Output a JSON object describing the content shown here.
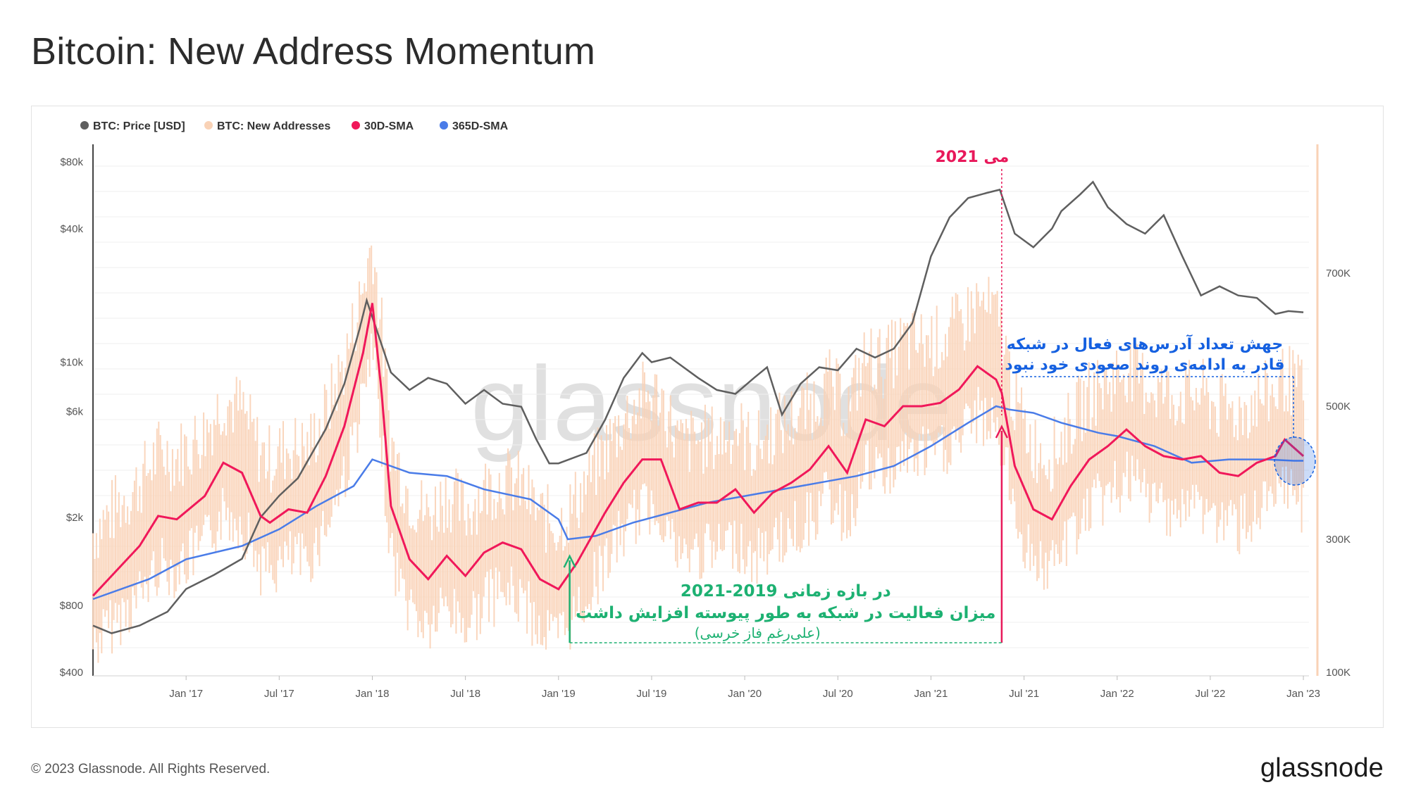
{
  "title": "Bitcoin: New Address Momentum",
  "footer": {
    "copyright": "© 2023 Glassnode. All Rights Reserved.",
    "brand": "glassnode"
  },
  "watermark": "glassnode",
  "colors": {
    "price": "#5f5f5f",
    "new_addresses": "#f9d2b6",
    "sma30": "#f0185a",
    "sma365": "#4a7ce8",
    "annotation_green": "#1db172",
    "annotation_red": "#e8185a",
    "annotation_blue": "#1560e0"
  },
  "annotations": {
    "may2021": "می 2021",
    "green_line1": "در بازه زمانی 2019-2021",
    "green_line2": "میزان فعالیت در شبکه به طور پیوسته افزایش داشت",
    "green_line3": "(علی‌رغم فاز خرسی)",
    "blue_line1": "جهش  تعداد آدرس‌های فعال در شبکه",
    "blue_line2": "قادر به ادامه‌ی روند صعودی خود نبود"
  },
  "chart_data": {
    "type": "line",
    "log_scale_left": true,
    "grid": true,
    "legend_placement": "top-left",
    "legend": [
      "BTC: Price [USD]",
      "BTC: New Addresses",
      "30D-SMA",
      "365D-SMA"
    ],
    "left_axis_ticks": [
      "$80k",
      "$40k",
      "$10k",
      "$6k",
      "$2k",
      "$800",
      "$400"
    ],
    "left_axis_values": [
      80000,
      40000,
      10000,
      6000,
      2000,
      800,
      400
    ],
    "right_axis_ticks": [
      "700K",
      "500K",
      "300K",
      "100K"
    ],
    "right_axis_values": [
      700000,
      500000,
      300000,
      100000
    ],
    "x_axis_ticks": [
      "Jan '17",
      "Jul '17",
      "Jan '18",
      "Jul '18",
      "Jan '19",
      "Jul '19",
      "Jan '20",
      "Jul '20",
      "Jan '21",
      "Jul '21",
      "Jan '22",
      "Jul '22",
      "Jan '23"
    ],
    "x_range": [
      2016.5,
      2023.03
    ],
    "series": [
      {
        "name": "BTC: Price [USD]",
        "axis": "left",
        "x": [
          2016.5,
          2016.6,
          2016.75,
          2016.9,
          2017.0,
          2017.15,
          2017.3,
          2017.4,
          2017.5,
          2017.6,
          2017.75,
          2017.85,
          2017.93,
          2017.97,
          2018.05,
          2018.1,
          2018.2,
          2018.3,
          2018.4,
          2018.5,
          2018.6,
          2018.7,
          2018.8,
          2018.88,
          2018.95,
          2019.0,
          2019.15,
          2019.25,
          2019.35,
          2019.45,
          2019.5,
          2019.6,
          2019.75,
          2019.85,
          2019.95,
          2020.05,
          2020.12,
          2020.2,
          2020.3,
          2020.4,
          2020.5,
          2020.6,
          2020.7,
          2020.8,
          2020.9,
          2021.0,
          2021.1,
          2021.2,
          2021.3,
          2021.37,
          2021.45,
          2021.55,
          2021.65,
          2021.7,
          2021.8,
          2021.87,
          2021.95,
          2022.05,
          2022.15,
          2022.25,
          2022.35,
          2022.45,
          2022.55,
          2022.65,
          2022.75,
          2022.85,
          2022.92,
          2023.0
        ],
        "values": [
          650,
          600,
          650,
          750,
          950,
          1100,
          1300,
          2000,
          2500,
          3000,
          5000,
          8000,
          14000,
          19000,
          12000,
          9000,
          7500,
          8500,
          8000,
          6500,
          7500,
          6500,
          6300,
          4500,
          3500,
          3500,
          3900,
          5500,
          8500,
          11000,
          10000,
          10500,
          8500,
          7500,
          7200,
          8500,
          9500,
          5800,
          8000,
          9500,
          9200,
          11500,
          10500,
          11500,
          15000,
          30000,
          45000,
          55000,
          58000,
          60000,
          38000,
          33000,
          40000,
          48000,
          57000,
          65000,
          50000,
          42000,
          38000,
          46000,
          30000,
          20000,
          22000,
          20000,
          19500,
          16500,
          17000,
          16800
        ]
      },
      {
        "name": "30D-SMA",
        "axis": "right",
        "x": [
          2016.5,
          2016.6,
          2016.75,
          2016.85,
          2016.95,
          2017.1,
          2017.2,
          2017.3,
          2017.4,
          2017.45,
          2017.55,
          2017.65,
          2017.75,
          2017.85,
          2017.95,
          2018.0,
          2018.05,
          2018.1,
          2018.2,
          2018.3,
          2018.4,
          2018.5,
          2018.6,
          2018.7,
          2018.8,
          2018.9,
          2019.0,
          2019.1,
          2019.25,
          2019.35,
          2019.45,
          2019.55,
          2019.65,
          2019.75,
          2019.85,
          2019.95,
          2020.05,
          2020.15,
          2020.25,
          2020.35,
          2020.45,
          2020.55,
          2020.65,
          2020.75,
          2020.85,
          2020.95,
          2021.05,
          2021.15,
          2021.25,
          2021.35,
          2021.38,
          2021.45,
          2021.55,
          2021.65,
          2021.75,
          2021.85,
          2021.95,
          2022.05,
          2022.15,
          2022.25,
          2022.35,
          2022.45,
          2022.55,
          2022.65,
          2022.75,
          2022.85,
          2022.9,
          2023.0
        ],
        "values": [
          215000,
          245000,
          290000,
          335000,
          330000,
          365000,
          415000,
          400000,
          335000,
          325000,
          345000,
          340000,
          395000,
          470000,
          580000,
          655000,
          520000,
          350000,
          270000,
          240000,
          275000,
          245000,
          280000,
          295000,
          285000,
          240000,
          225000,
          265000,
          340000,
          385000,
          420000,
          420000,
          345000,
          355000,
          355000,
          375000,
          340000,
          370000,
          385000,
          405000,
          440000,
          400000,
          480000,
          470000,
          500000,
          500000,
          505000,
          525000,
          560000,
          540000,
          520000,
          410000,
          345000,
          330000,
          380000,
          420000,
          440000,
          465000,
          440000,
          425000,
          420000,
          425000,
          400000,
          395000,
          415000,
          425000,
          450000,
          425000
        ]
      },
      {
        "name": "365D-SMA",
        "axis": "right",
        "x": [
          2016.5,
          2016.8,
          2017.0,
          2017.3,
          2017.5,
          2017.7,
          2017.9,
          2018.0,
          2018.2,
          2018.4,
          2018.6,
          2018.85,
          2019.0,
          2019.05,
          2019.2,
          2019.4,
          2019.6,
          2019.8,
          2020.0,
          2020.2,
          2020.4,
          2020.6,
          2020.8,
          2021.0,
          2021.2,
          2021.35,
          2021.42,
          2021.55,
          2021.7,
          2021.9,
          2022.0,
          2022.2,
          2022.4,
          2022.6,
          2022.8,
          2022.95,
          2023.0
        ],
        "values": [
          210000,
          240000,
          270000,
          290000,
          315000,
          350000,
          380000,
          420000,
          400000,
          395000,
          375000,
          360000,
          330000,
          300000,
          305000,
          325000,
          340000,
          355000,
          365000,
          375000,
          385000,
          395000,
          410000,
          440000,
          475000,
          500000,
          495000,
          490000,
          475000,
          460000,
          455000,
          440000,
          415000,
          420000,
          420000,
          418000,
          418000
        ]
      }
    ]
  }
}
